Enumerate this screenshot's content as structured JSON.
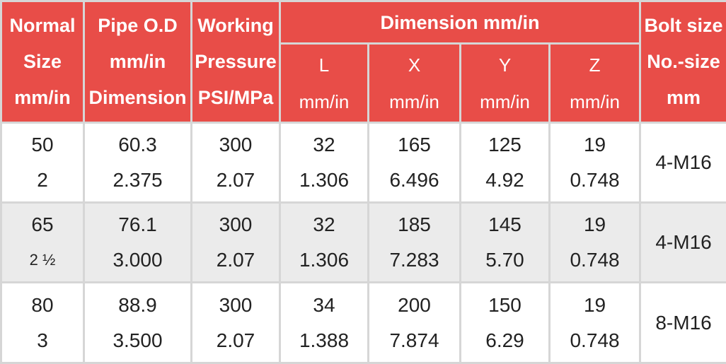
{
  "header": {
    "normal_size": [
      "Normal",
      "Size",
      "mm/in"
    ],
    "pipe_od": [
      "Pipe O.D",
      "mm/in",
      "Dimension"
    ],
    "working_pressure": [
      "Working",
      "Pressure",
      "PSI/MPa"
    ],
    "dimension": "Dimension mm/in",
    "bolt_size": [
      "Bolt size",
      "No.-size",
      "mm"
    ],
    "sub": [
      {
        "name": "L",
        "unit": "mm/in"
      },
      {
        "name": "X",
        "unit": "mm/in"
      },
      {
        "name": "Y",
        "unit": "mm/in"
      },
      {
        "name": "Z",
        "unit": "mm/in"
      }
    ]
  },
  "rows": [
    {
      "size": [
        "50",
        "2"
      ],
      "od": [
        "60.3",
        "2.375"
      ],
      "pressure": [
        "300",
        "2.07"
      ],
      "L": [
        "32",
        "1.306"
      ],
      "X": [
        "165",
        "6.496"
      ],
      "Y": [
        "125",
        "4.92"
      ],
      "Z": [
        "19",
        "0.748"
      ],
      "bolt": "4-M16"
    },
    {
      "size": [
        "65",
        "2 ½"
      ],
      "od": [
        "76.1",
        "3.000"
      ],
      "pressure": [
        "300",
        "2.07"
      ],
      "L": [
        "32",
        "1.306"
      ],
      "X": [
        "185",
        "7.283"
      ],
      "Y": [
        "145",
        "5.70"
      ],
      "Z": [
        "19",
        "0.748"
      ],
      "bolt": "4-M16"
    },
    {
      "size": [
        "80",
        "3"
      ],
      "od": [
        "88.9",
        "3.500"
      ],
      "pressure": [
        "300",
        "2.07"
      ],
      "L": [
        "34",
        "1.388"
      ],
      "X": [
        "200",
        "7.874"
      ],
      "Y": [
        "150",
        "6.29"
      ],
      "Z": [
        "19",
        "0.748"
      ],
      "bolt": "8-M16"
    }
  ],
  "colors": {
    "header_bg": "#e84d48",
    "header_text": "#ffffff",
    "alt_row_bg": "#ebebeb",
    "border": "#d6d6d6"
  }
}
